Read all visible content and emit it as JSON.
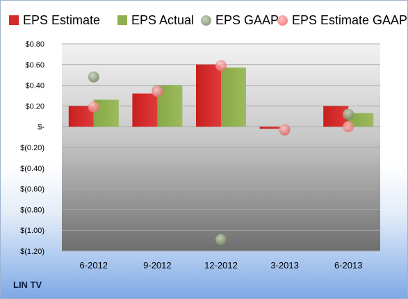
{
  "chart_data": {
    "type": "bar",
    "categories": [
      "6-2012",
      "9-2012",
      "12-2012",
      "3-2013",
      "6-2013"
    ],
    "series": [
      {
        "name": "EPS Estimate",
        "kind": "bar",
        "color": "#d42a2a",
        "values": [
          0.2,
          0.32,
          0.6,
          -0.02,
          0.2
        ]
      },
      {
        "name": "EPS Actual",
        "kind": "bar",
        "color": "#8fb04f",
        "values": [
          0.26,
          0.4,
          0.57,
          null,
          0.13
        ]
      },
      {
        "name": "EPS GAAP",
        "kind": "point",
        "color": "#8a9a78",
        "values": [
          0.48,
          0.35,
          -1.09,
          -0.03,
          0.12
        ]
      },
      {
        "name": "EPS Estimate GAAP",
        "kind": "point",
        "color": "#f08a8a",
        "values": [
          0.19,
          0.34,
          0.59,
          -0.03,
          0.0
        ]
      }
    ],
    "yticks": [
      "$0.80",
      "$0.60",
      "$0.40",
      "$0.20",
      "$-",
      "$(0.20)",
      "$(0.40)",
      "$(0.60)",
      "$(0.80)",
      "$(1.00)",
      "$(1.20)"
    ],
    "ylim": [
      -1.2,
      0.8
    ],
    "grid": true,
    "legend": "top"
  },
  "company": "LIN TV"
}
